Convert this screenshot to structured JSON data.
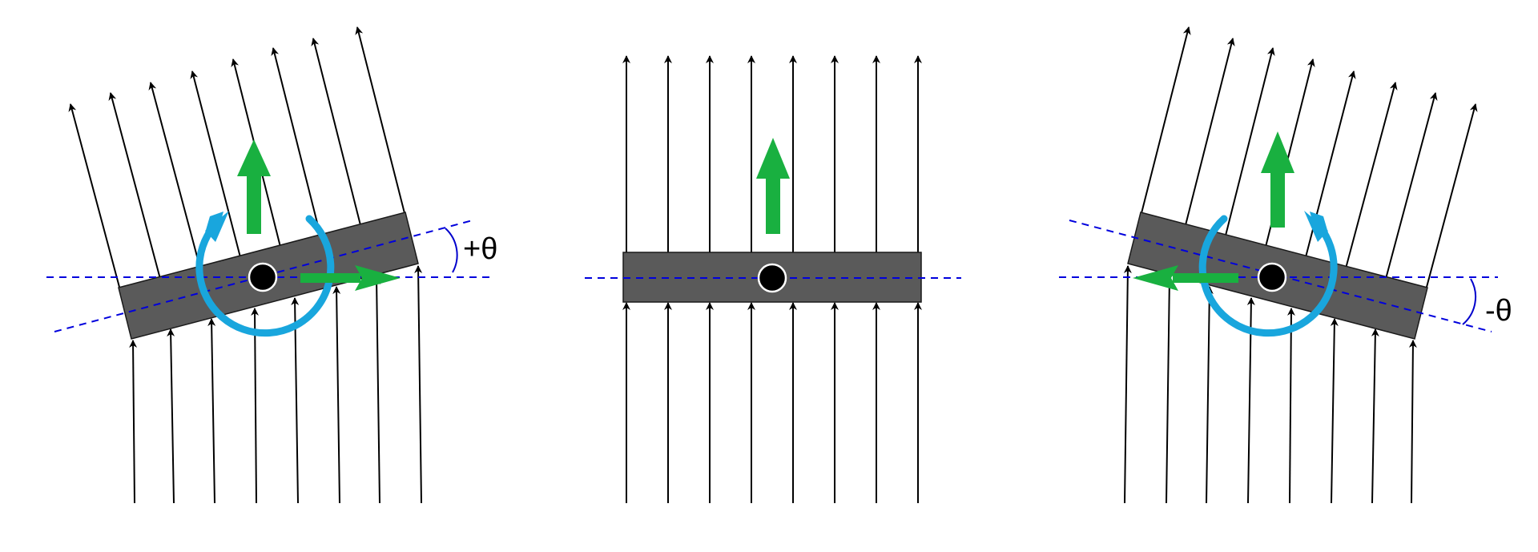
{
  "diagram": {
    "colors": {
      "ray": "#000000",
      "plate": "#5a5a5a",
      "plate_outline": "#1a1a1a",
      "axis_dashed": "#0000dd",
      "angle_arc": "#0000cc",
      "force_arrow": "#19b040",
      "rotation_arrow": "#19a6dd",
      "pivot": "#000000",
      "pivot_ring": "#ffffff",
      "background": "#ffffff"
    },
    "panels": [
      {
        "id": "left",
        "tilt": "positive",
        "angle_label": "+θ",
        "rotation": "counter-clockwise"
      },
      {
        "id": "center",
        "tilt": "none",
        "angle_label": "",
        "rotation": "none"
      },
      {
        "id": "right",
        "tilt": "negative",
        "angle_label": "-θ",
        "rotation": "clockwise"
      }
    ],
    "icons": {
      "incoming_rays": "arrow-up-icon",
      "deflected_rays": "arrow-up-icon",
      "lift_force": "arrow-up-icon",
      "side_force": "arrow-right-icon",
      "torque": "rotate-icon",
      "pivot": "circle-icon"
    }
  }
}
